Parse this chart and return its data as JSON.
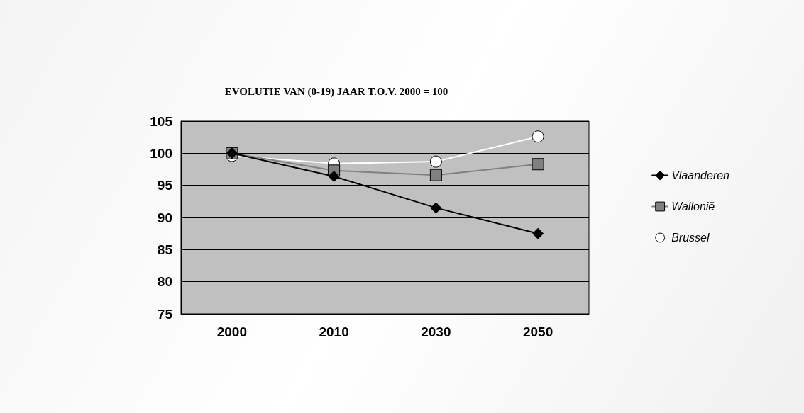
{
  "chart_data": {
    "type": "line",
    "title": "EVOLUTIE VAN (0-19) JAAR T.O.V. 2000 = 100",
    "categories": [
      "2000",
      "2010",
      "2030",
      "2050"
    ],
    "series": [
      {
        "name": "Vlaanderen",
        "color": "#000000",
        "marker": "diamond",
        "values": [
          100,
          96.4,
          91.5,
          87.5
        ]
      },
      {
        "name": "Wallonië",
        "color": "#808080",
        "marker": "square",
        "values": [
          100,
          97.3,
          96.6,
          98.3
        ]
      },
      {
        "name": "Brussel",
        "color": "#ffffff",
        "marker": "circle",
        "values": [
          99.6,
          98.4,
          98.7,
          102.6
        ]
      }
    ],
    "ylim": [
      75,
      105
    ],
    "yticks": [
      75,
      80,
      85,
      90,
      95,
      100,
      105
    ],
    "grid": "y",
    "legend": "right"
  }
}
